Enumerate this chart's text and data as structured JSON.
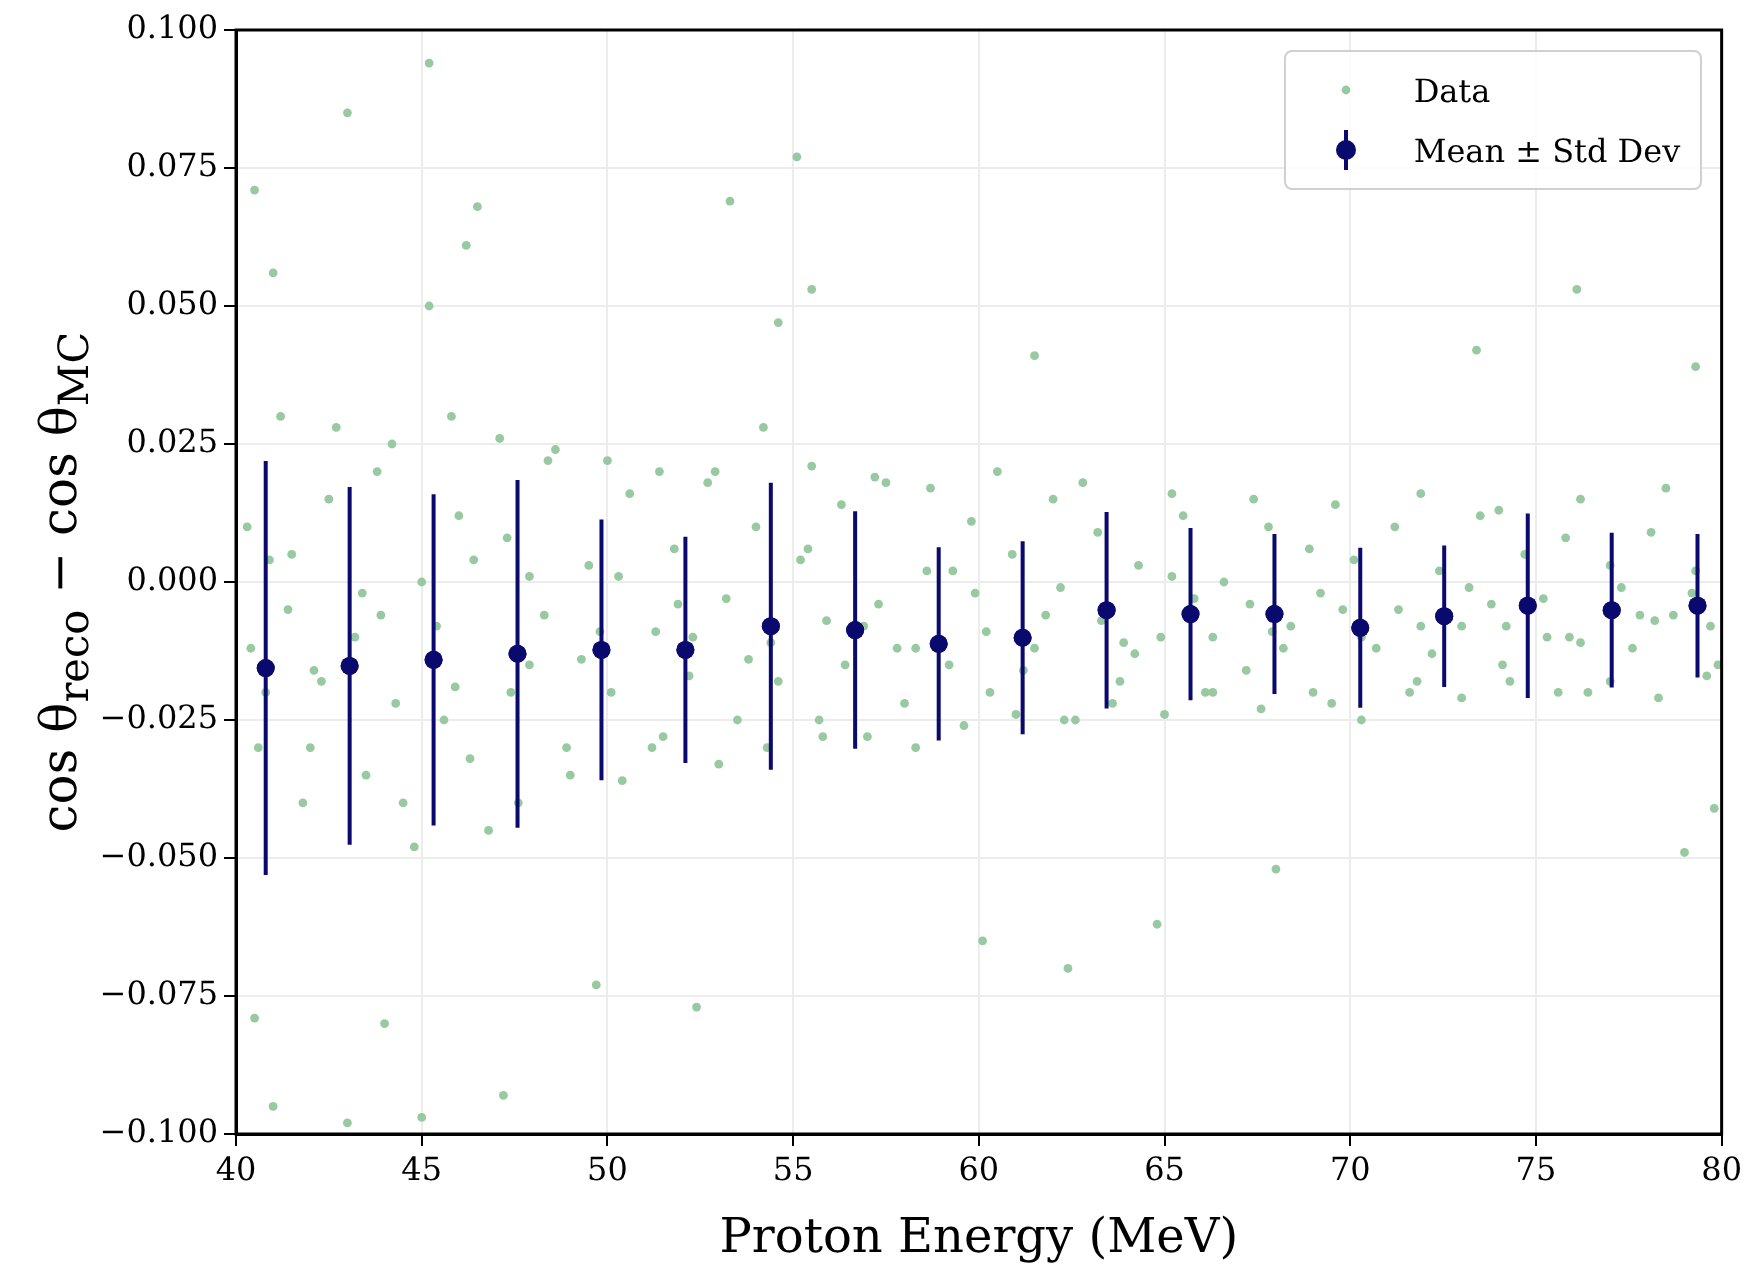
{
  "chart_data": {
    "type": "scatter",
    "xlabel": "Proton Energy (MeV)",
    "ylabel": "cos θ$_{reco}$ − cos θ$_{MC}$",
    "xlim": [
      40,
      80
    ],
    "xticks": [
      40,
      45,
      50,
      55,
      60,
      65,
      70,
      75,
      80
    ],
    "ylim": [
      -0.1,
      0.1
    ],
    "yticks": [
      {
        "value": -0.1,
        "label": "−0.100"
      },
      {
        "value": -0.075,
        "label": "−0.075"
      },
      {
        "value": -0.05,
        "label": "−0.050"
      },
      {
        "value": -0.025,
        "label": "−0.025"
      },
      {
        "value": 0,
        "label": "0.000"
      },
      {
        "value": 0.025,
        "label": "0.025"
      },
      {
        "value": 0.05,
        "label": "0.050"
      },
      {
        "value": 0.075,
        "label": "0.075"
      },
      {
        "value": 0.1,
        "label": "0.100"
      }
    ],
    "grid": true,
    "legend": "top right",
    "series": [
      {
        "name": "Data",
        "color": "#98c9a0",
        "x": [
          40.4,
          41.4,
          42.3,
          43.4,
          44.3,
          45.4,
          46.4,
          47.4,
          48.3,
          49.3,
          50.3,
          51.3,
          52.2,
          53.2,
          54.4,
          55.4,
          56.4,
          57.3,
          58.3,
          59.3,
          60.2,
          61.2,
          62.2,
          63.3,
          64.2,
          65.2,
          66.3,
          67.3,
          68.2,
          69.2,
          70.3,
          71.3,
          72.2,
          73.2,
          74.2,
          75.2,
          76.2,
          77.3,
          78.2,
          79.2,
          40.9,
          42.1,
          43.9,
          45.9,
          47.9,
          49.8,
          51.9,
          53.8,
          55.9,
          57.8,
          59.9,
          61.8,
          63.9,
          65.8,
          67.9,
          69.8,
          71.9,
          73.8,
          75.9,
          77.8,
          79.7,
          40.5,
          41,
          43,
          45.2,
          45.2,
          46.2,
          46.5,
          53.3,
          55.1,
          55.5,
          54.6,
          61.5,
          76.1,
          73.4,
          79.3,
          40.5,
          41,
          43,
          45,
          47.2,
          44,
          49.7,
          52.4,
          64.8,
          62.4,
          60.1,
          68,
          79,
          79.8,
          40.3,
          40.8,
          41.5,
          42,
          42.5,
          43.2,
          43.8,
          44.5,
          45,
          45.6,
          46,
          46.8,
          47.3,
          47.9,
          48.4,
          49,
          49.5,
          50.1,
          50.6,
          51.2,
          51.8,
          52.3,
          52.9,
          53.5,
          54,
          54.6,
          55.2,
          55.8,
          56.3,
          56.9,
          57.5,
          58,
          58.6,
          59.2,
          59.8,
          60.3,
          60.9,
          61.5,
          62,
          62.6,
          63.2,
          63.8,
          64.3,
          64.9,
          65.5,
          66.1,
          66.6,
          67.2,
          67.8,
          68.4,
          68.9,
          69.5,
          70.1,
          70.7,
          71.2,
          71.8,
          72.4,
          73,
          73.5,
          74.1,
          74.7,
          75.3,
          75.8,
          76.4,
          77,
          77.6,
          78.1,
          78.7,
          79.3,
          79.9,
          40.6,
          41.8,
          43.5,
          44.8,
          46.3,
          47.6,
          48.9,
          50.4,
          51.5,
          53,
          54.3,
          55.7,
          57,
          58.3,
          59.6,
          61,
          62.3,
          63.6,
          65,
          66.3,
          67.6,
          69,
          70.3,
          71.6,
          73,
          74.3,
          75.6,
          77,
          78.3,
          79.6,
          41.2,
          42.7,
          44.2,
          45.8,
          47.1,
          48.6,
          50,
          51.4,
          52.7,
          54.2,
          55.5,
          57.2,
          58.7,
          60.5,
          62.8,
          65.2,
          67.4,
          69.6,
          71.9,
          74,
          76.2,
          78.5
        ],
        "values": [
          -0.012,
          -0.005,
          -0.018,
          -0.002,
          -0.022,
          -0.008,
          0.004,
          -0.02,
          -0.006,
          -0.014,
          0.001,
          -0.009,
          -0.017,
          -0.003,
          -0.011,
          0.006,
          -0.015,
          -0.004,
          -0.012,
          0.002,
          -0.009,
          -0.016,
          -0.001,
          -0.007,
          -0.013,
          0.001,
          -0.01,
          -0.004,
          -0.012,
          -0.002,
          -0.01,
          -0.005,
          -0.013,
          -0.001,
          -0.008,
          -0.003,
          -0.011,
          -0.001,
          -0.007,
          -0.002,
          0.004,
          -0.016,
          -0.006,
          -0.019,
          0.001,
          -0.009,
          -0.004,
          -0.014,
          -0.007,
          -0.012,
          -0.002,
          -0.006,
          -0.011,
          -0.003,
          -0.009,
          -0.005,
          -0.008,
          -0.004,
          -0.01,
          -0.006,
          -0.008,
          0.071,
          0.056,
          0.085,
          0.094,
          0.05,
          0.061,
          0.068,
          0.069,
          0.077,
          0.053,
          0.047,
          0.041,
          0.053,
          0.042,
          0.039,
          -0.079,
          -0.095,
          -0.098,
          -0.097,
          -0.093,
          -0.08,
          -0.073,
          -0.077,
          -0.062,
          -0.07,
          -0.065,
          -0.052,
          -0.049,
          -0.041,
          0.01,
          -0.02,
          0.005,
          -0.03,
          0.015,
          -0.01,
          0.02,
          -0.04,
          0.0,
          -0.025,
          0.012,
          -0.045,
          0.008,
          -0.015,
          0.022,
          -0.035,
          0.003,
          -0.02,
          0.016,
          -0.03,
          0.006,
          -0.01,
          0.02,
          -0.025,
          0.01,
          -0.018,
          0.004,
          -0.028,
          0.014,
          -0.008,
          0.018,
          -0.022,
          0.002,
          -0.015,
          0.011,
          -0.02,
          0.005,
          -0.012,
          0.015,
          -0.025,
          0.009,
          -0.018,
          0.003,
          -0.01,
          0.012,
          -0.02,
          0.0,
          -0.016,
          0.01,
          -0.008,
          0.006,
          -0.022,
          0.004,
          -0.012,
          0.01,
          -0.018,
          0.002,
          -0.008,
          0.012,
          -0.015,
          0.005,
          -0.01,
          0.008,
          -0.02,
          0.003,
          -0.012,
          0.009,
          -0.006,
          0.002,
          -0.015,
          -0.03,
          -0.04,
          -0.035,
          -0.048,
          -0.032,
          -0.04,
          -0.03,
          -0.036,
          -0.028,
          -0.033,
          -0.03,
          -0.025,
          -0.028,
          -0.03,
          -0.026,
          -0.024,
          -0.025,
          -0.022,
          -0.024,
          -0.02,
          -0.023,
          -0.02,
          -0.025,
          -0.02,
          -0.021,
          -0.018,
          -0.02,
          -0.018,
          -0.021,
          -0.017,
          0.03,
          0.028,
          0.025,
          0.03,
          0.026,
          0.024,
          0.022,
          0.02,
          0.018,
          0.028,
          0.021,
          0.019,
          0.017,
          0.02,
          0.018,
          0.016,
          0.015,
          0.014,
          0.016,
          0.013,
          0.015,
          0.017
        ]
      },
      {
        "name": "Mean ± Std Dev",
        "color": "#0a0a6e",
        "x": [
          40.8,
          43.06,
          45.32,
          47.58,
          49.84,
          52.1,
          54.4,
          56.67,
          58.92,
          61.18,
          63.44,
          65.7,
          67.96,
          70.27,
          72.53,
          74.78,
          77.04,
          79.35
        ],
        "values": [
          -0.0156,
          -0.0152,
          -0.0141,
          -0.013,
          -0.0123,
          -0.0123,
          -0.008,
          -0.0087,
          -0.0112,
          -0.0101,
          -0.0051,
          -0.0058,
          -0.0058,
          -0.0083,
          -0.0062,
          -0.0043,
          -0.0051,
          -0.0043
        ],
        "errors": [
          0.0375,
          0.0324,
          0.03,
          0.0315,
          0.0236,
          0.0205,
          0.026,
          0.0215,
          0.0175,
          0.0175,
          0.0178,
          0.0156,
          0.0145,
          0.0145,
          0.0128,
          0.0167,
          0.014,
          0.013
        ]
      }
    ]
  }
}
